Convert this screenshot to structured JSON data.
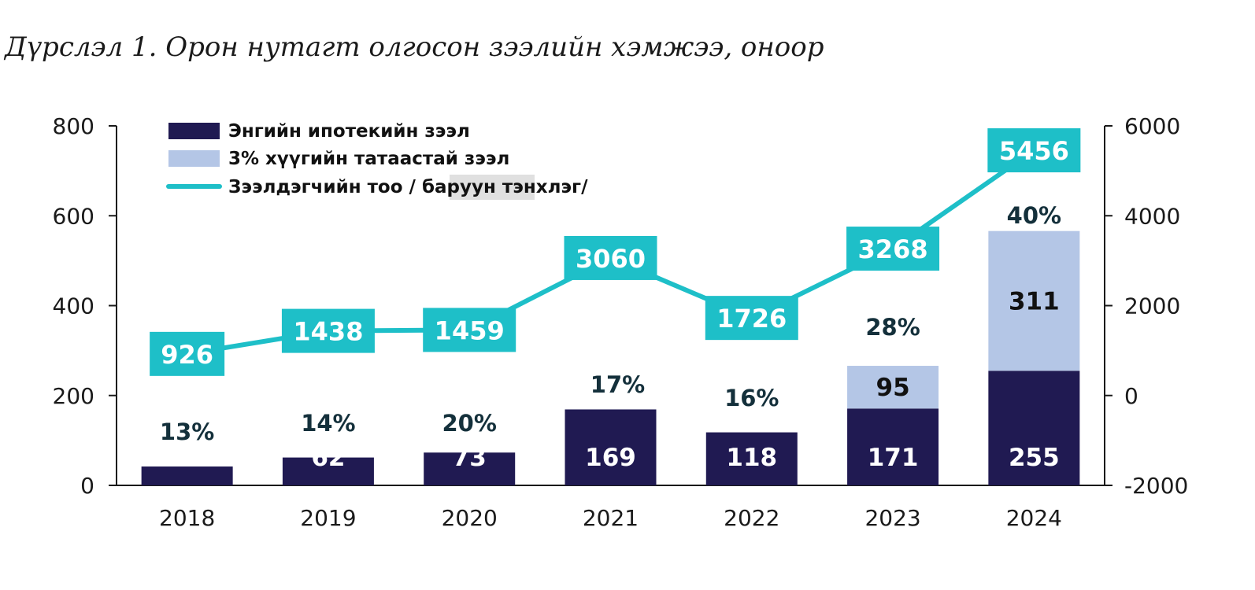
{
  "title": "Дүрслэл 1. Орон нутагт олгосон зээлийн хэмжээ, оноор",
  "colors": {
    "regular": "#201a52",
    "subsidized": "#b4c6e6",
    "line": "#1ebfc8",
    "pct": "#14303b",
    "axis": "#1a1a1a"
  },
  "legend": {
    "regular": "Энгийн ипотекийн зээл",
    "subsidized": "3% хүүгийн татаастай зээл",
    "line_part1": "Зээлдэгчийн тоо / ",
    "line_part2": "баруун",
    "line_part3": " тэнхлэг/"
  },
  "chart_data": {
    "type": "bar",
    "title": "Дүрслэл 1. Орон нутагт олгосон зээлийн хэмжээ, оноор",
    "categories": [
      "2018",
      "2019",
      "2020",
      "2021",
      "2022",
      "2023",
      "2024"
    ],
    "series": [
      {
        "name": "Энгийн ипотекийн зээл",
        "type": "bar",
        "stack": "loans",
        "axis": "left",
        "values": [
          42,
          62,
          73,
          169,
          118,
          171,
          255
        ]
      },
      {
        "name": "3% хүүгийн татаастай зээл",
        "type": "bar",
        "stack": "loans",
        "axis": "left",
        "values": [
          null,
          null,
          null,
          null,
          null,
          95,
          311
        ]
      },
      {
        "name": "Зээлдэгчийн тоо / баруун тэнхлэг/",
        "type": "line",
        "axis": "right",
        "values": [
          926,
          1438,
          1459,
          3060,
          1726,
          3268,
          5456
        ]
      }
    ],
    "percent_labels": [
      "13%",
      "14%",
      "20%",
      "17%",
      "16%",
      "28%",
      "40%"
    ],
    "left_axis": {
      "ylim": [
        0,
        800
      ],
      "ticks": [
        "0",
        "200",
        "400",
        "600",
        "800"
      ]
    },
    "right_axis": {
      "ylim": [
        -2000,
        6000
      ],
      "ticks": [
        "-2000",
        "0",
        "2000",
        "4000",
        "6000"
      ]
    },
    "legend_position": "top-left",
    "grid": false
  }
}
